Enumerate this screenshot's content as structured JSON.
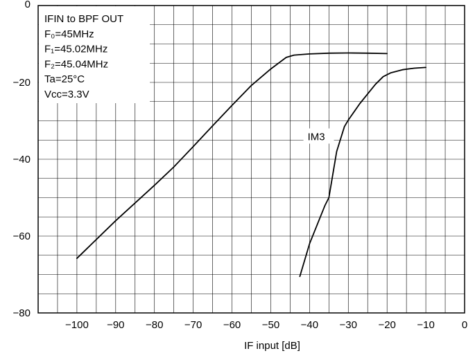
{
  "chart_data": {
    "type": "line",
    "title": "",
    "xlabel": "IF input [dB]",
    "ylabel": "",
    "xlim": [
      -110,
      0
    ],
    "ylim": [
      -80,
      0
    ],
    "grid": true,
    "x_ticks": [
      -100,
      -90,
      -80,
      -70,
      -60,
      -50,
      -40,
      -30,
      -20,
      -10,
      0
    ],
    "x_tick_labels": [
      "−100",
      "−90",
      "−80",
      "−70",
      "−60",
      "−50",
      "−40",
      "−30",
      "−20",
      "−10",
      "0"
    ],
    "y_ticks": [
      0,
      -20,
      -40,
      -60,
      -80
    ],
    "y_tick_labels": [
      "0",
      "−20",
      "−40",
      "−60",
      "−80"
    ],
    "annotation_box": {
      "placement": "top-left",
      "lines": [
        "IFIN to BPF OUT",
        "F₀=45MHz",
        "F₁=45.02MHz",
        "F₂=45.04MHz",
        "Ta=25°C",
        "Vcc=3.3V"
      ]
    },
    "series": [
      {
        "name": "",
        "x": [
          -100,
          -90,
          -80,
          -75,
          -70,
          -65,
          -60,
          -55,
          -50,
          -46,
          -44,
          -40,
          -35,
          -30,
          -25,
          -20
        ],
        "y": [
          -65.8,
          -56,
          -46.8,
          -42,
          -36.7,
          -31.3,
          -26,
          -20.8,
          -16.5,
          -13.5,
          -12.9,
          -12.6,
          -12.4,
          -12.35,
          -12.4,
          -12.5
        ]
      },
      {
        "name": "IM3",
        "x": [
          -42.5,
          -40,
          -36,
          -35,
          -33,
          -31,
          -30,
          -27,
          -23,
          -21,
          -19,
          -16,
          -13,
          -10
        ],
        "y": [
          -70.5,
          -62,
          -52,
          -50,
          -38,
          -31.5,
          -29.8,
          -25.5,
          -20.5,
          -18.5,
          -17.5,
          -16.7,
          -16.3,
          -16.1
        ]
      }
    ],
    "series_label": {
      "text": "IM3",
      "at": [
        -40.5,
        -34.5
      ]
    }
  }
}
